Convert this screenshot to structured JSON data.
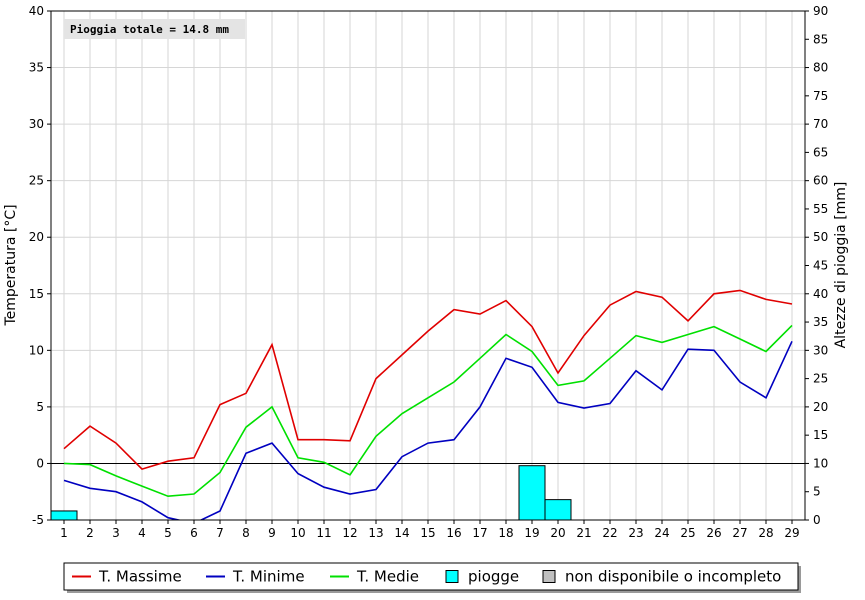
{
  "chart_data": {
    "type": "line",
    "annotation": "Pioggia totale = 14.8 mm",
    "ylabel": "Temperatura [°C]",
    "y2label": "Altezze di pioggia [mm]",
    "ylim": [
      -5,
      40
    ],
    "y2lim": [
      0,
      90
    ],
    "y_ticks": [
      "-5",
      "0",
      "5",
      "10",
      "15",
      "20",
      "25",
      "30",
      "35",
      "40"
    ],
    "y2_ticks": [
      "0",
      "5",
      "10",
      "15",
      "20",
      "25",
      "30",
      "35",
      "40",
      "45",
      "50",
      "55",
      "60",
      "65",
      "70",
      "75",
      "80",
      "85",
      "90"
    ],
    "x": [
      1,
      2,
      3,
      4,
      5,
      6,
      7,
      8,
      9,
      10,
      11,
      12,
      13,
      14,
      15,
      16,
      17,
      18,
      19,
      20,
      21,
      22,
      23,
      24,
      25,
      26,
      27,
      28,
      29
    ],
    "x_ticks": [
      "1",
      "2",
      "3",
      "4",
      "5",
      "6",
      "7",
      "8",
      "9",
      "10",
      "11",
      "12",
      "13",
      "14",
      "15",
      "16",
      "17",
      "18",
      "19",
      "20",
      "21",
      "22",
      "23",
      "24",
      "25",
      "26",
      "27",
      "28",
      "29"
    ],
    "grid": true,
    "legend_position": "bottom",
    "series": [
      {
        "name": "T. Massime",
        "color": "#e00000",
        "values": [
          1.3,
          3.3,
          1.8,
          -0.5,
          0.2,
          0.5,
          5.2,
          6.2,
          10.5,
          2.1,
          2.1,
          2.0,
          7.5,
          9.6,
          11.7,
          13.6,
          13.2,
          14.4,
          12.1,
          8.0,
          11.3,
          14.0,
          15.2,
          14.7,
          12.6,
          15.0,
          15.3,
          14.5,
          14.1
        ]
      },
      {
        "name": "T. Minime",
        "color": "#0000c0",
        "values": [
          -1.5,
          -2.2,
          -2.5,
          -3.4,
          -4.8,
          -5.3,
          -4.2,
          0.9,
          1.8,
          -0.9,
          -2.1,
          -2.7,
          -2.3,
          0.6,
          1.8,
          2.1,
          5.0,
          9.3,
          8.5,
          5.4,
          4.9,
          5.3,
          8.2,
          6.5,
          10.1,
          10.0,
          7.2,
          5.8,
          10.8
        ]
      },
      {
        "name": "T. Medie",
        "color": "#00e000",
        "values": [
          0.0,
          -0.1,
          -1.1,
          -2.0,
          -2.9,
          -2.7,
          -0.8,
          3.2,
          5.0,
          0.5,
          0.1,
          -1.0,
          2.4,
          4.4,
          5.8,
          7.2,
          9.3,
          11.4,
          9.9,
          6.9,
          7.3,
          9.3,
          11.3,
          10.7,
          11.4,
          12.1,
          11.0,
          9.9,
          12.2
        ]
      }
    ],
    "bars": {
      "name": "piogge",
      "color": "#00ffff",
      "axis": "right",
      "x": [
        1,
        19,
        20
      ],
      "values": [
        1.6,
        9.6,
        3.6
      ]
    },
    "legend": [
      {
        "label": "T. Massime",
        "kind": "line",
        "color": "#e00000"
      },
      {
        "label": "T. Minime",
        "kind": "line",
        "color": "#0000c0"
      },
      {
        "label": "T. Medie",
        "kind": "line",
        "color": "#00e000"
      },
      {
        "label": "piogge",
        "kind": "box",
        "color": "#00ffff"
      },
      {
        "label": "non disponibile o incompleto",
        "kind": "box",
        "color": "#c0c0c0"
      }
    ]
  }
}
